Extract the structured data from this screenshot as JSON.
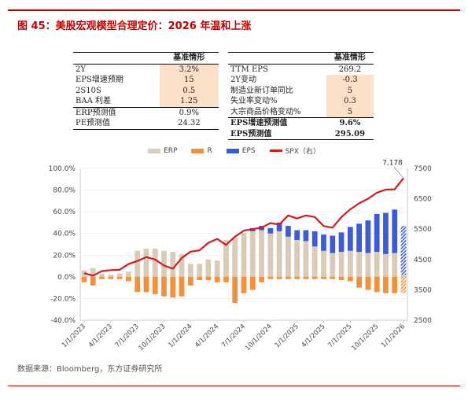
{
  "figure": {
    "title": "图 45：美股宏观模型合理定价：2026 年温和上涨",
    "source": "数据来源：Bloomberg，东方证券研究所"
  },
  "table_left": {
    "header": "基准情形",
    "rows": [
      {
        "label": "2Y",
        "value": "3.2%",
        "shaded": true,
        "bold": false
      },
      {
        "label": "EPS增速预期",
        "value": "15",
        "shaded": true,
        "bold": false
      },
      {
        "label": "2S10S",
        "value": "0.5",
        "shaded": true,
        "bold": false
      },
      {
        "label": "BAA 利差",
        "value": "1.25",
        "shaded": true,
        "bold": false
      },
      {
        "label": "ERP预测值",
        "value": "0.9%",
        "shaded": false,
        "bold": false
      },
      {
        "label": "PE预测值",
        "value": "24.32",
        "shaded": false,
        "bold": false
      }
    ]
  },
  "table_right": {
    "header": "基准情形",
    "rows": [
      {
        "label": "TTM EPS",
        "value": "269.2",
        "shaded": false,
        "bold": false
      },
      {
        "label": "2Y变动",
        "value": "-0.3",
        "shaded": true,
        "bold": false
      },
      {
        "label": "制造业新订单同比",
        "value": "5",
        "shaded": true,
        "bold": false
      },
      {
        "label": "失业率变动%",
        "value": "0.3",
        "shaded": true,
        "bold": false
      },
      {
        "label": "大宗商品价格变动%",
        "value": "5",
        "shaded": true,
        "bold": false
      },
      {
        "label": "EPS增速预测值",
        "value": "9.6%",
        "shaded": false,
        "bold": true
      },
      {
        "label": "EPS预测值",
        "value": "295.09",
        "shaded": false,
        "bold": true
      }
    ]
  },
  "colors": {
    "erp": "#d9cbb8",
    "r": "#f5903a",
    "eps": "#3d5bd9",
    "spx": "#d7191c",
    "accent": "#c00000",
    "shade": "#fde0c8"
  },
  "chart_data": {
    "type": "bar",
    "stacked": true,
    "legend": [
      "ERP",
      "R",
      "EPS",
      "SPX（右）"
    ],
    "x_ticks": [
      "1/1/2023",
      "4/1/2023",
      "7/1/2023",
      "10/1/2023",
      "1/1/2024",
      "4/1/2024",
      "7/1/2024",
      "10/1/2024",
      "1/1/2025",
      "4/1/2025",
      "7/1/2025",
      "10/1/2025",
      "1/1/2026"
    ],
    "ylim_left": [
      -40,
      100
    ],
    "yticks_left": [
      "100.0%",
      "80.0%",
      "60.0%",
      "40.0%",
      "20.0%",
      "0.0%",
      "-20.0%",
      "-40.0%"
    ],
    "ylim_right": [
      2500,
      7500
    ],
    "yticks_right": [
      "7500",
      "6500",
      "5500",
      "4500",
      "3500",
      "2500"
    ],
    "annotation": "7,178",
    "n_periods": 37,
    "erp": [
      6,
      8,
      3,
      2,
      3,
      5,
      24,
      26,
      26,
      24,
      23,
      21,
      12,
      12,
      16,
      15,
      34,
      36,
      40,
      42,
      43,
      40,
      42,
      37,
      34,
      33,
      28,
      24,
      22,
      23,
      24,
      23,
      22,
      23,
      21,
      22,
      2
    ],
    "r": [
      -5,
      -8,
      -2,
      -2,
      -2,
      -4,
      -14,
      -14,
      -16,
      -18,
      -19,
      -18,
      -8,
      -3,
      -3,
      -5,
      -5,
      -24,
      -15,
      -12,
      -5,
      -2,
      -2,
      -2,
      -2,
      -2,
      -2,
      -2,
      -2,
      -3,
      -4,
      -10,
      -12,
      -14,
      -15,
      -15,
      -15
    ],
    "eps": [
      0,
      0,
      0,
      0,
      0,
      0,
      0,
      0,
      0,
      0,
      0,
      0,
      0,
      0,
      0,
      0,
      0,
      0,
      0,
      3,
      4,
      5,
      8,
      10,
      9,
      10,
      14,
      15,
      16,
      18,
      22,
      26,
      30,
      35,
      38,
      40,
      45
    ],
    "eps_forecast_from": 36,
    "spx": [
      4050,
      3970,
      4120,
      4150,
      4160,
      4350,
      4450,
      4580,
      4500,
      4300,
      4200,
      4550,
      4760,
      4800,
      5050,
      5180,
      4980,
      5250,
      5450,
      5500,
      5550,
      5700,
      5650,
      5950,
      5850,
      5950,
      5900,
      5600,
      5550,
      5900,
      6150,
      6350,
      6500,
      6700,
      6800,
      6810,
      7178
    ]
  }
}
